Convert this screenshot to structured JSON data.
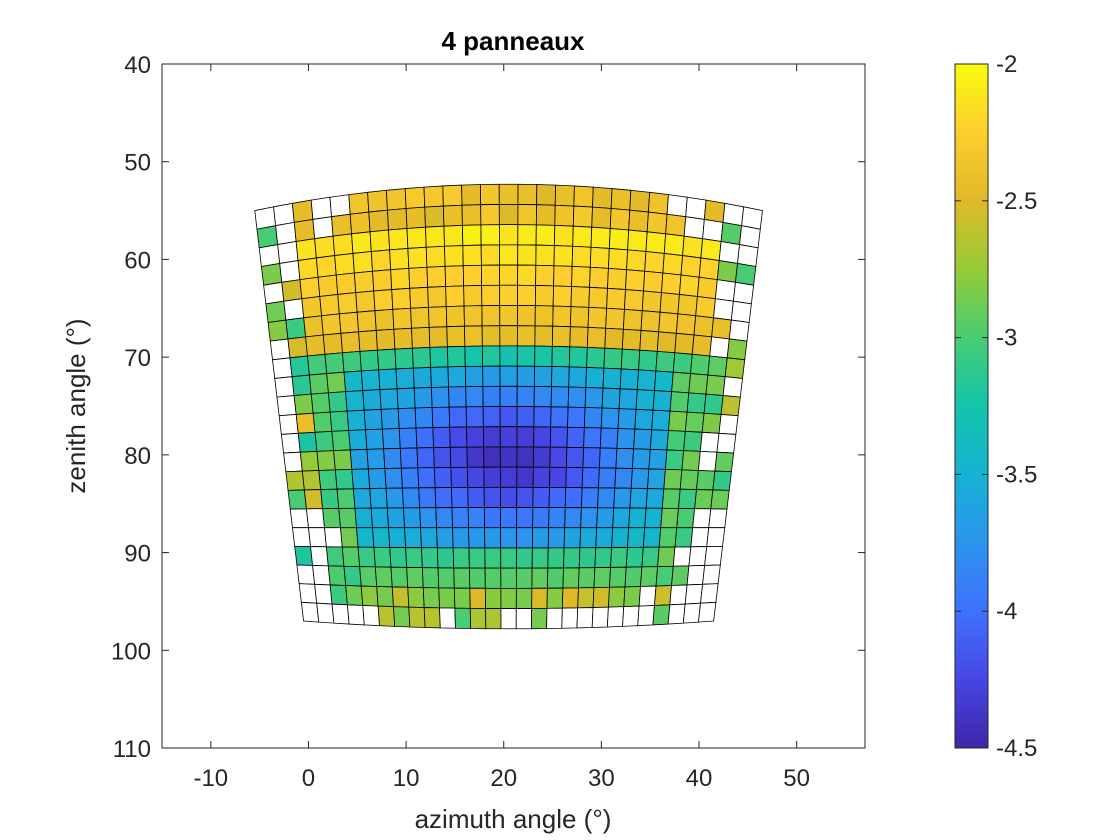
{
  "chart_data": {
    "type": "heatmap",
    "title": "4 panneaux",
    "xlabel": "azimuth angle (°)",
    "ylabel": "zenith angle (°)",
    "xlim": [
      -15,
      57
    ],
    "ylim": [
      40,
      110
    ],
    "y_reversed": true,
    "xticks": [
      -10,
      0,
      10,
      20,
      30,
      40,
      50
    ],
    "yticks": [
      40,
      50,
      60,
      70,
      80,
      90,
      100,
      110
    ],
    "colorbar": {
      "min": -4.5,
      "max": -2,
      "ticks": [
        -2,
        -2.5,
        -3,
        -3.5,
        -4,
        -4.5
      ],
      "colormap": "parula"
    },
    "grid": {
      "columns": 27,
      "rows": 22,
      "top_edge_zenith": {
        "left": 55.0,
        "center": 52.3,
        "right": 55.0
      },
      "bottom_edge_zenith": {
        "left": 97.0,
        "center": 97.8,
        "right": 97.0
      },
      "top_edge_azimuth": [
        -5.5,
        46.5
      ],
      "bottom_edge_azimuth": [
        -0.5,
        41.5
      ],
      "empty_cell_value": null,
      "values_description": "cell values ranging from about -2.1 (upper rows) to about -4.4 (center), edge cells sparse/empty"
    }
  }
}
